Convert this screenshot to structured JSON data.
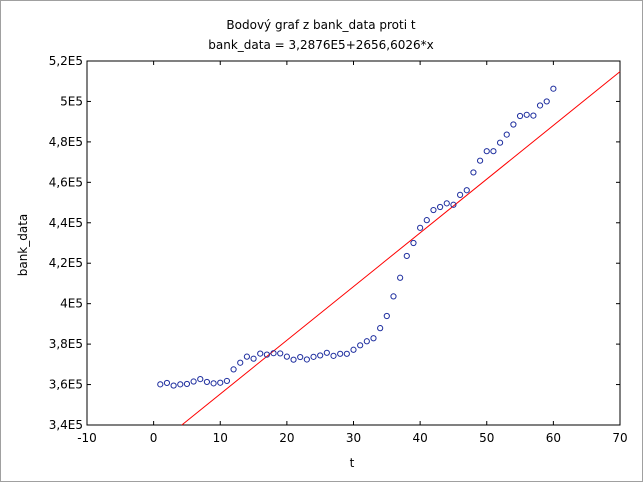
{
  "chart_data": {
    "type": "scatter",
    "title": "Bodový graf z bank_data proti t",
    "subtitle": "bank_data = 3,2876E5+2656,6026*x",
    "xlabel": "t",
    "ylabel": "bank_data",
    "xlim": [
      -10,
      70
    ],
    "ylim": [
      340000,
      520000
    ],
    "x_ticks": [
      -10,
      0,
      10,
      20,
      30,
      40,
      50,
      60,
      70
    ],
    "x_tick_labels": [
      "-10",
      "0",
      "10",
      "20",
      "30",
      "40",
      "50",
      "60",
      "70"
    ],
    "y_ticks": [
      340000,
      360000,
      380000,
      400000,
      420000,
      440000,
      460000,
      480000,
      500000,
      520000
    ],
    "y_tick_labels": [
      "3,4E5",
      "3,6E5",
      "3,8E5",
      "4E5",
      "4,2E5",
      "4,4E5",
      "4,6E5",
      "4,8E5",
      "5E5",
      "5,2E5"
    ],
    "grid": false,
    "regression": {
      "intercept": 328760,
      "slope": 2656.6026,
      "color": "#ff0000"
    },
    "marker_color": "#1f2f9f",
    "series": [
      {
        "x": [
          1,
          2,
          3,
          4,
          5,
          6,
          7,
          8,
          9,
          10,
          11,
          12,
          13,
          14,
          15,
          16,
          17,
          18,
          19,
          20,
          21,
          22,
          23,
          24,
          25,
          26,
          27,
          28,
          29,
          30,
          31,
          32,
          33,
          34,
          35,
          36,
          37,
          38,
          39,
          40,
          41,
          42,
          43,
          44,
          45,
          46,
          47,
          48,
          49,
          50,
          51,
          52,
          53,
          54,
          55,
          56,
          57,
          58,
          59,
          60
        ],
        "y": [
          360100,
          360800,
          359500,
          360100,
          360300,
          361500,
          362700,
          361300,
          360600,
          360900,
          361800,
          367500,
          370800,
          373800,
          372800,
          375300,
          374800,
          375500,
          375400,
          373800,
          372300,
          373600,
          372400,
          373700,
          374400,
          375700,
          374200,
          375200,
          375200,
          377200,
          379400,
          381400,
          382900,
          387900,
          393900,
          403600,
          412800,
          423600,
          430000,
          437500,
          441300,
          446300,
          447800,
          449600,
          448900,
          453800,
          456100,
          464900,
          470700,
          475400,
          475400,
          479600,
          483600,
          488600,
          492800,
          493400,
          493000,
          498000,
          500000,
          506300
        ]
      }
    ]
  }
}
